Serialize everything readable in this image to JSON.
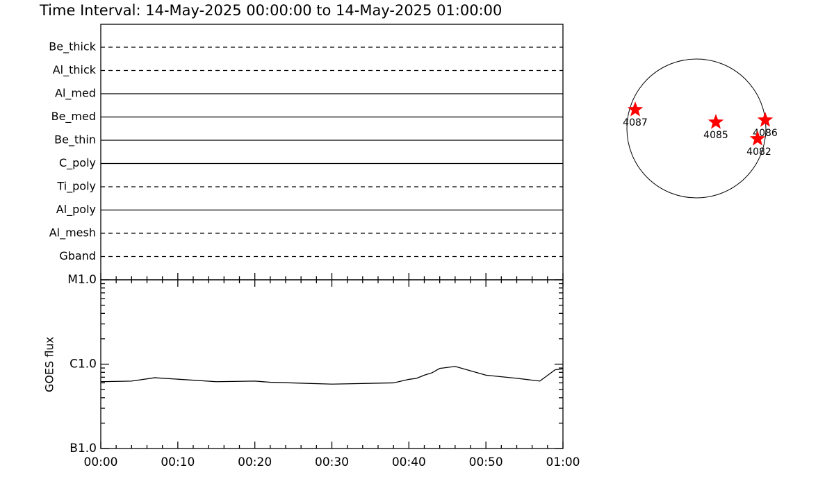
{
  "title": "Time Interval: 14-May-2025 00:00:00 to 14-May-2025 01:00:00",
  "filters": [
    {
      "name": "Be_thick",
      "style": "dashed"
    },
    {
      "name": "Al_thick",
      "style": "dashed"
    },
    {
      "name": "Al_med",
      "style": "solid"
    },
    {
      "name": "Be_med",
      "style": "solid"
    },
    {
      "name": "Be_thin",
      "style": "solid"
    },
    {
      "name": "C_poly",
      "style": "solid"
    },
    {
      "name": "Ti_poly",
      "style": "dashed"
    },
    {
      "name": "Al_poly",
      "style": "solid"
    },
    {
      "name": "Al_mesh",
      "style": "dashed"
    },
    {
      "name": "Gband",
      "style": "dashed"
    }
  ],
  "chart_data": {
    "type": "line",
    "ylabel": "GOES flux",
    "log": true,
    "color": "#000000",
    "x": [
      0,
      4,
      7,
      15,
      20,
      22,
      30,
      38,
      40,
      41,
      42,
      43,
      44,
      46,
      50,
      54,
      57,
      59,
      60
    ],
    "values": [
      6.2e-07,
      6.3e-07,
      6.9e-07,
      6.2e-07,
      6.3e-07,
      6.1e-07,
      5.8e-07,
      6e-07,
      6.6e-07,
      6.8e-07,
      7.4e-07,
      7.9e-07,
      8.9e-07,
      9.4e-07,
      7.4e-07,
      6.8e-07,
      6.3e-07,
      8.6e-07,
      8.8e-07
    ],
    "xlim": [
      0,
      60
    ],
    "xticks": [
      {
        "value": 0,
        "label": "00:00"
      },
      {
        "value": 10,
        "label": "00:10"
      },
      {
        "value": 20,
        "label": "00:20"
      },
      {
        "value": 30,
        "label": "00:30"
      },
      {
        "value": 40,
        "label": "00:40"
      },
      {
        "value": 50,
        "label": "00:50"
      },
      {
        "value": 60,
        "label": "01:00"
      }
    ],
    "ylim": [
      1e-07,
      1e-05
    ],
    "yticks": [
      {
        "value": 1e-07,
        "label": "B1.0"
      },
      {
        "value": 1e-06,
        "label": "C1.0"
      },
      {
        "value": 1e-05,
        "label": "M1.0"
      }
    ]
  },
  "regions": [
    "4087",
    "4085",
    "4086",
    "4082"
  ]
}
